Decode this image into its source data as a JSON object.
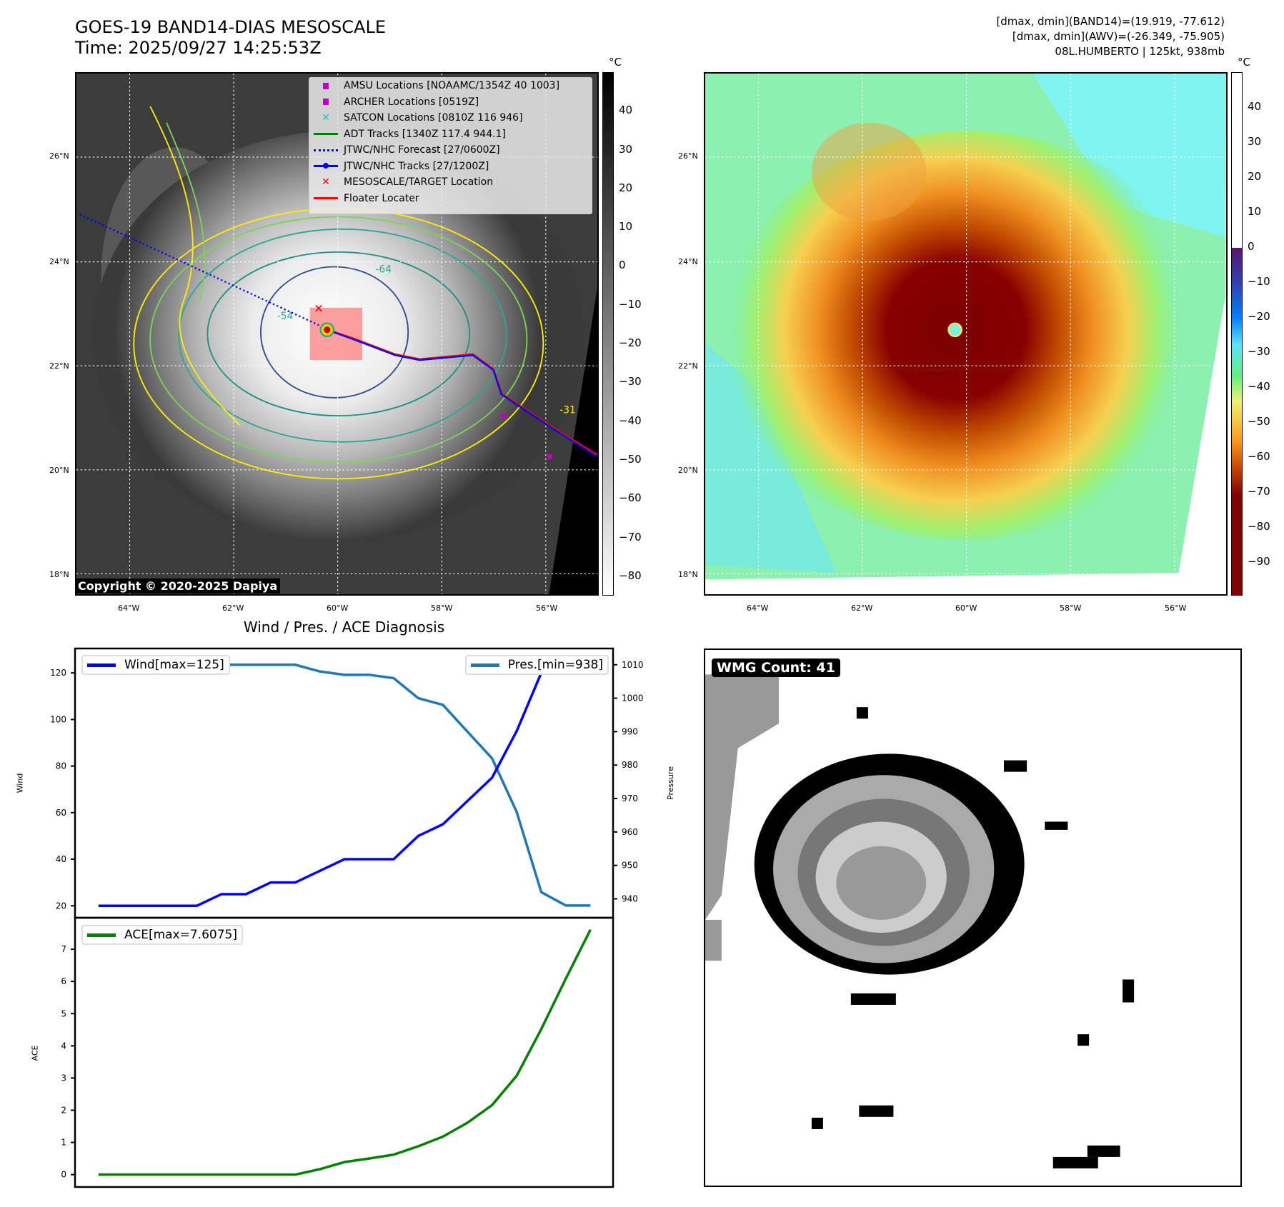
{
  "header": {
    "title_line1": "GOES-19 BAND14-DIAS MESOSCALE",
    "title_line2": "Time: 2025/09/27 14:25:53Z",
    "info_line1": "[dmax, dmin](BAND14)=(19.919, -77.612)",
    "info_line2": "[dmax, dmin](AWV)=(-26.349, -75.905)",
    "info_line3": "08L.HUMBERTO | 125kt, 938mb"
  },
  "maps": {
    "lat_labels": [
      "26°N",
      "24°N",
      "22°N",
      "20°N",
      "18°N"
    ],
    "lon_labels": [
      "64°W",
      "62°W",
      "60°W",
      "58°W",
      "56°W"
    ],
    "copyright": "Copyright © 2020-2025 Dapiya",
    "contour_labels": [
      "-31",
      "-54",
      "-64"
    ],
    "legend": [
      {
        "label": "AMSU Locations [NOAAMC/1354Z 40 1003]",
        "icon": "square-marker",
        "color": "#c000c0"
      },
      {
        "label": "ARCHER Locations [0519Z]",
        "icon": "square-marker",
        "color": "#c000c0"
      },
      {
        "label": "SATCON Locations [0810Z 116 946]",
        "icon": "x-marker",
        "color": "#20c0c0"
      },
      {
        "label": "ADT Tracks [1340Z 117.4 944.1]",
        "icon": "line",
        "color": "#008000"
      },
      {
        "label": "JTWC/NHC Forecast [27/0600Z]",
        "icon": "dotted-line",
        "color": "#0000ff"
      },
      {
        "label": "JTWC/NHC Tracks [27/1200Z]",
        "icon": "line-dot",
        "color": "#0000ff"
      },
      {
        "label": "MESOSCALE/TARGET Location",
        "icon": "x-marker",
        "color": "#ff0000"
      },
      {
        "label": "Floater Locater",
        "icon": "line",
        "color": "#ff0000"
      }
    ],
    "left_colorbar": {
      "unit": "°C",
      "ticks": [
        "40",
        "30",
        "20",
        "10",
        "0",
        "−10",
        "−20",
        "−30",
        "−40",
        "−50",
        "−60",
        "−70",
        "−80"
      ],
      "range": [
        50,
        -85
      ]
    },
    "right_colorbar": {
      "unit": "°C",
      "ticks": [
        "40",
        "30",
        "20",
        "10",
        "0",
        "−10",
        "−20",
        "−30",
        "−40",
        "−50",
        "−60",
        "−70",
        "−80",
        "−90"
      ],
      "range": [
        50,
        -99.6
      ]
    }
  },
  "chart_data": [
    {
      "type": "line",
      "title": "Wind / Pres. / ACE Diagnosis",
      "x": [
        0,
        1,
        2,
        3,
        4,
        5,
        6,
        7,
        8,
        9,
        10,
        11,
        12,
        13,
        14,
        15,
        16,
        17,
        18,
        19,
        20
      ],
      "ylabel": "Wind",
      "y2label": "Pressure",
      "ylim": [
        15,
        130
      ],
      "y2lim": [
        933,
        1015
      ],
      "yticks": [
        "20",
        "40",
        "60",
        "80",
        "100",
        "120"
      ],
      "y2ticks": [
        "940",
        "950",
        "960",
        "970",
        "980",
        "990",
        "1000",
        "1010"
      ],
      "series": [
        {
          "name": "Wind[max=125]",
          "axis": "left",
          "color": "#0000ff",
          "values": [
            20,
            20,
            20,
            20,
            20,
            25,
            25,
            30,
            30,
            35,
            40,
            40,
            40,
            50,
            55,
            65,
            75,
            95,
            120,
            125,
            125
          ]
        },
        {
          "name": "Pres.[min=938]",
          "axis": "right",
          "color": "#1f77b4",
          "values": [
            1011,
            1011,
            1011,
            1011,
            1011,
            1010,
            1010,
            1010,
            1010,
            1008,
            1007,
            1007,
            1006,
            1000,
            998,
            990,
            982,
            966,
            942,
            938,
            938
          ]
        }
      ]
    },
    {
      "type": "line",
      "ylabel": "ACE",
      "ylim": [
        -0.35,
        8.0
      ],
      "yticks": [
        "0",
        "1",
        "2",
        "3",
        "4",
        "5",
        "6",
        "7"
      ],
      "series": [
        {
          "name": "ACE[max=7.6075]",
          "color": "#008000",
          "values": [
            0,
            0,
            0,
            0,
            0,
            0,
            0,
            0,
            0,
            0.17,
            0.39,
            0.5,
            0.62,
            0.88,
            1.18,
            1.61,
            2.16,
            3.07,
            4.52,
            6.09,
            7.6075
          ]
        }
      ]
    }
  ],
  "wmg": {
    "label": "WMG Count: 41"
  }
}
